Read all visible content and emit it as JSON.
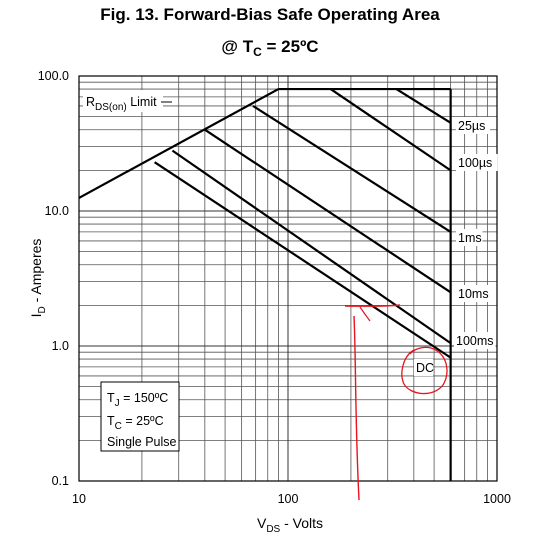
{
  "chart_data": {
    "type": "line",
    "title": "Fig. 13. Forward-Bias Safe Operating Area",
    "subtitle": {
      "prefix": "@ T",
      "sub": "C",
      "suffix": " = 25ºC"
    },
    "xlabel": {
      "prefix": "V",
      "sub": "DS",
      "suffix": " - Volts"
    },
    "ylabel": {
      "prefix": "I",
      "sub": "D",
      "suffix": " - Amperes"
    },
    "xscale": "log",
    "yscale": "log",
    "xlim": [
      10,
      1000
    ],
    "ylim": [
      0.1,
      100
    ],
    "grid": true,
    "x_tick_labels": [
      "10",
      "100",
      "1000"
    ],
    "y_tick_labels": [
      "100.0",
      "10.0",
      "1.0",
      "0.1"
    ],
    "max_current": 80,
    "max_voltage": 600,
    "rds_on_limit": {
      "label": {
        "prefix": "R",
        "sub": "DS(on)",
        "suffix": " Limit"
      },
      "points": [
        [
          10,
          12.5
        ],
        [
          90,
          80
        ]
      ]
    },
    "series": [
      {
        "name": "25µs",
        "points": [
          [
            330,
            80
          ],
          [
            600,
            45
          ]
        ]
      },
      {
        "name": "100µs",
        "points": [
          [
            160,
            80
          ],
          [
            600,
            20
          ]
        ]
      },
      {
        "name": "1ms",
        "points": [
          [
            68,
            60
          ],
          [
            600,
            7
          ]
        ]
      },
      {
        "name": "10ms",
        "points": [
          [
            40,
            40
          ],
          [
            600,
            2.5
          ]
        ]
      },
      {
        "name": "100ms",
        "points": [
          [
            28,
            28
          ],
          [
            600,
            1.05
          ]
        ]
      },
      {
        "name": "DC",
        "points": [
          [
            23,
            23
          ],
          [
            600,
            0.82
          ]
        ]
      }
    ],
    "conditions": {
      "tj": {
        "prefix": "T",
        "sub": "J",
        "suffix": " = 150ºC"
      },
      "tc": {
        "prefix": "T",
        "sub": "C",
        "suffix": " = 25ºC"
      },
      "pulse": "Single Pulse"
    },
    "annotations": {
      "color": "#e8141e",
      "circled_label": "DC",
      "marked_point": [
        220,
        1.9
      ]
    }
  }
}
